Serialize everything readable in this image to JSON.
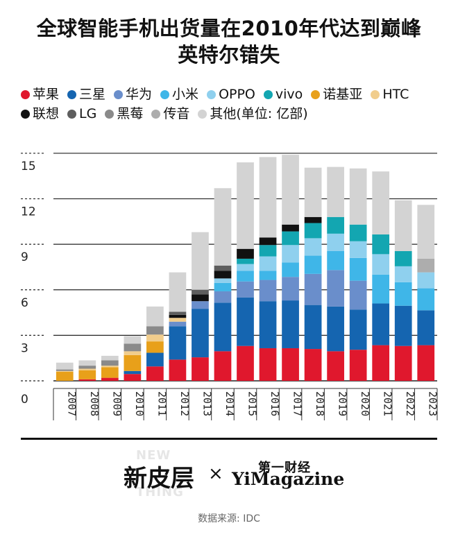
{
  "title_line1": "全球智能手机出货量在2010年代达到巅峰",
  "title_line2": "英特尔错失",
  "legend": [
    {
      "label": "苹果",
      "color": "#e0182d"
    },
    {
      "label": "三星",
      "color": "#1565b0"
    },
    {
      "label": "华为",
      "color": "#6a8ecb"
    },
    {
      "label": "小米",
      "color": "#3fb6e8"
    },
    {
      "label": "OPPO",
      "color": "#8fd0ee"
    },
    {
      "label": "vivo",
      "color": "#13a6b1"
    },
    {
      "label": "诺基亚",
      "color": "#e8a01a"
    },
    {
      "label": "HTC",
      "color": "#f1cd8c"
    },
    {
      "label": "联想",
      "color": "#111111"
    },
    {
      "label": "LG",
      "color": "#5e5e5e"
    },
    {
      "label": "黑莓",
      "color": "#8a8a8a"
    },
    {
      "label": "传音",
      "color": "#adadad"
    },
    {
      "label": "其他(单位: 亿部)",
      "color": "#d3d3d3"
    }
  ],
  "chart_data": {
    "type": "bar",
    "stacked": true,
    "categories": [
      "2007",
      "2008",
      "2009",
      "2010",
      "2011",
      "2012",
      "2013",
      "2014",
      "2015",
      "2016",
      "2017",
      "2018",
      "2019",
      "2020",
      "2021",
      "2022",
      "2023"
    ],
    "y_ticks": [
      "0",
      "3",
      "6",
      "9",
      "12",
      "15"
    ],
    "ylim": [
      0,
      15.5
    ],
    "series": [
      {
        "name": "苹果",
        "color": "#e0182d",
        "values": [
          0.0,
          0.1,
          0.2,
          0.45,
          0.95,
          1.4,
          1.55,
          1.95,
          2.3,
          2.15,
          2.15,
          2.1,
          1.95,
          2.05,
          2.35,
          2.3,
          2.35
        ]
      },
      {
        "name": "三星",
        "color": "#1565b0",
        "values": [
          0.0,
          0.0,
          0.0,
          0.2,
          0.9,
          2.2,
          3.2,
          3.2,
          3.2,
          3.1,
          3.15,
          2.9,
          2.95,
          2.65,
          2.75,
          2.65,
          2.3
        ]
      },
      {
        "name": "华为",
        "color": "#6a8ecb",
        "values": [
          0.0,
          0.0,
          0.0,
          0.0,
          0.0,
          0.3,
          0.5,
          0.75,
          1.05,
          1.4,
          1.55,
          2.05,
          2.4,
          1.9,
          0.0,
          0.0,
          0.0
        ]
      },
      {
        "name": "小米",
        "color": "#3fb6e8",
        "values": [
          0.0,
          0.0,
          0.0,
          0.0,
          0.0,
          0.0,
          0.0,
          0.55,
          0.7,
          0.6,
          0.95,
          1.2,
          1.25,
          1.5,
          1.9,
          1.55,
          1.45
        ]
      },
      {
        "name": "OPPO",
        "color": "#8fd0ee",
        "values": [
          0.0,
          0.0,
          0.0,
          0.0,
          0.0,
          0.0,
          0.0,
          0.3,
          0.45,
          0.95,
          1.15,
          1.15,
          1.15,
          1.1,
          1.35,
          1.05,
          1.05
        ]
      },
      {
        "name": "vivo",
        "color": "#13a6b1",
        "values": [
          0.0,
          0.0,
          0.0,
          0.0,
          0.0,
          0.0,
          0.0,
          0.0,
          0.35,
          0.75,
          0.9,
          1.0,
          1.1,
          1.1,
          1.3,
          1.0,
          0.0
        ]
      },
      {
        "name": "诺基亚",
        "color": "#e8a01a",
        "values": [
          0.6,
          0.6,
          0.7,
          1.05,
          0.75,
          0.0,
          0.0,
          0.0,
          0.0,
          0.0,
          0.0,
          0.0,
          0.0,
          0.0,
          0.0,
          0.0,
          0.0
        ]
      },
      {
        "name": "HTC",
        "color": "#f1cd8c",
        "values": [
          0.05,
          0.1,
          0.1,
          0.25,
          0.45,
          0.25,
          0.0,
          0.0,
          0.0,
          0.0,
          0.0,
          0.0,
          0.0,
          0.0,
          0.0,
          0.0,
          0.0
        ]
      },
      {
        "name": "联想",
        "color": "#111111",
        "values": [
          0.0,
          0.0,
          0.0,
          0.0,
          0.0,
          0.2,
          0.45,
          0.5,
          0.65,
          0.5,
          0.45,
          0.4,
          0.0,
          0.0,
          0.0,
          0.0,
          0.0
        ]
      },
      {
        "name": "LG",
        "color": "#5e5e5e",
        "values": [
          0.0,
          0.0,
          0.0,
          0.0,
          0.0,
          0.2,
          0.3,
          0.35,
          0.0,
          0.0,
          0.0,
          0.0,
          0.0,
          0.0,
          0.0,
          0.0,
          0.0
        ]
      },
      {
        "name": "黑莓",
        "color": "#8a8a8a",
        "values": [
          0.1,
          0.2,
          0.35,
          0.5,
          0.55,
          0.0,
          0.0,
          0.0,
          0.0,
          0.0,
          0.0,
          0.0,
          0.0,
          0.0,
          0.0,
          0.0,
          0.0
        ]
      },
      {
        "name": "传音",
        "color": "#adadad",
        "values": [
          0.0,
          0.0,
          0.0,
          0.0,
          0.0,
          0.0,
          0.0,
          0.0,
          0.0,
          0.0,
          0.0,
          0.0,
          0.0,
          0.0,
          0.0,
          0.0,
          0.9
        ]
      },
      {
        "name": "其他(单位: 亿部)",
        "color": "#d3d3d3",
        "values": [
          0.45,
          0.35,
          0.3,
          0.5,
          1.3,
          2.6,
          3.8,
          5.1,
          5.7,
          5.3,
          4.6,
          3.25,
          3.3,
          3.7,
          4.15,
          3.35,
          3.55
        ]
      }
    ]
  },
  "footer": {
    "brand_cn": "新皮层",
    "ghost_new": "NEW",
    "ghost_thing": "THING",
    "times": "×",
    "yi_cn": "第一财经",
    "yi_en": "YiMagazine",
    "source": "数据来源: IDC"
  }
}
